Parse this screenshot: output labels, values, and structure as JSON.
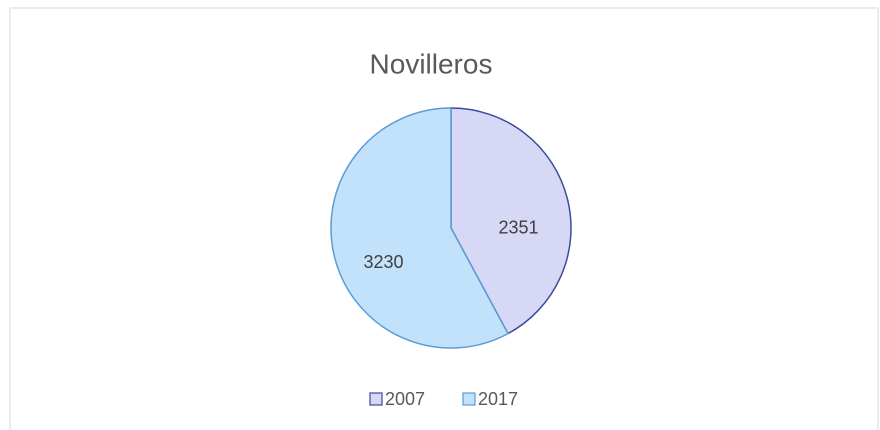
{
  "chart_data": {
    "type": "pie",
    "title": "Novilleros",
    "categories": [
      "2007",
      "2017"
    ],
    "values": [
      2351,
      3230
    ],
    "colors": [
      "#d6d8f6",
      "#c2e2fc"
    ],
    "stroke_colors": [
      "#3b4c9b",
      "#5d9bd3"
    ]
  }
}
